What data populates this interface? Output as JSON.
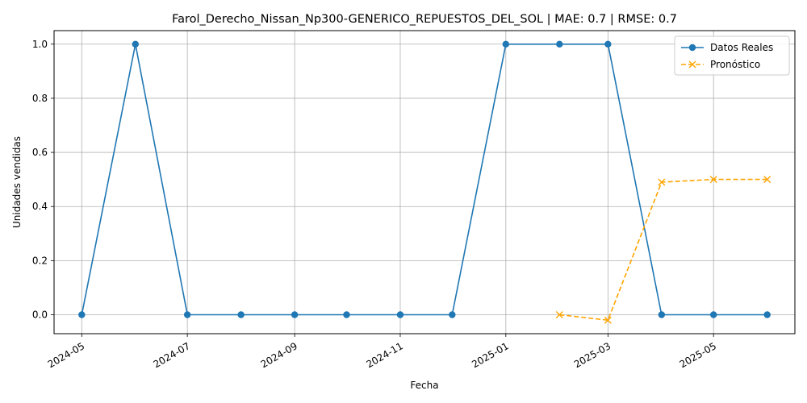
{
  "chart_data": {
    "type": "line",
    "title": "Farol_Derecho_Nissan_Np300-GENERICO_REPUESTOS_DEL_SOL | MAE: 0.7 | RMSE: 0.7",
    "xlabel": "Fecha",
    "ylabel": "Unidades vendidas",
    "x_axis": "date",
    "xlim": [
      "2024-04-15",
      "2025-06-17"
    ],
    "ylim": [
      -0.07,
      1.05
    ],
    "x_ticks": [
      "2024-05",
      "2024-07",
      "2024-09",
      "2024-11",
      "2025-01",
      "2025-03",
      "2025-05"
    ],
    "y_ticks": [
      "0.0",
      "0.2",
      "0.4",
      "0.6",
      "0.8",
      "1.0"
    ],
    "grid": true,
    "legend_position": "top-right",
    "series": [
      {
        "name": "Datos Reales",
        "color": "#1f77b4",
        "style": "solid",
        "marker": "circle",
        "x": [
          "2024-05-01",
          "2024-06-01",
          "2024-07-01",
          "2024-08-01",
          "2024-09-01",
          "2024-10-01",
          "2024-11-01",
          "2024-12-01",
          "2025-01-01",
          "2025-02-01",
          "2025-03-01",
          "2025-04-01",
          "2025-05-01",
          "2025-06-01"
        ],
        "y": [
          0,
          1,
          0,
          0,
          0,
          0,
          0,
          0,
          1,
          1,
          1,
          0,
          0,
          0
        ]
      },
      {
        "name": "Pronóstico",
        "color": "#ffa500",
        "style": "dashed",
        "marker": "x",
        "x": [
          "2025-02-01",
          "2025-03-01",
          "2025-04-01",
          "2025-05-01",
          "2025-06-01"
        ],
        "y": [
          0.0,
          -0.02,
          0.49,
          0.5,
          0.5
        ]
      }
    ]
  }
}
